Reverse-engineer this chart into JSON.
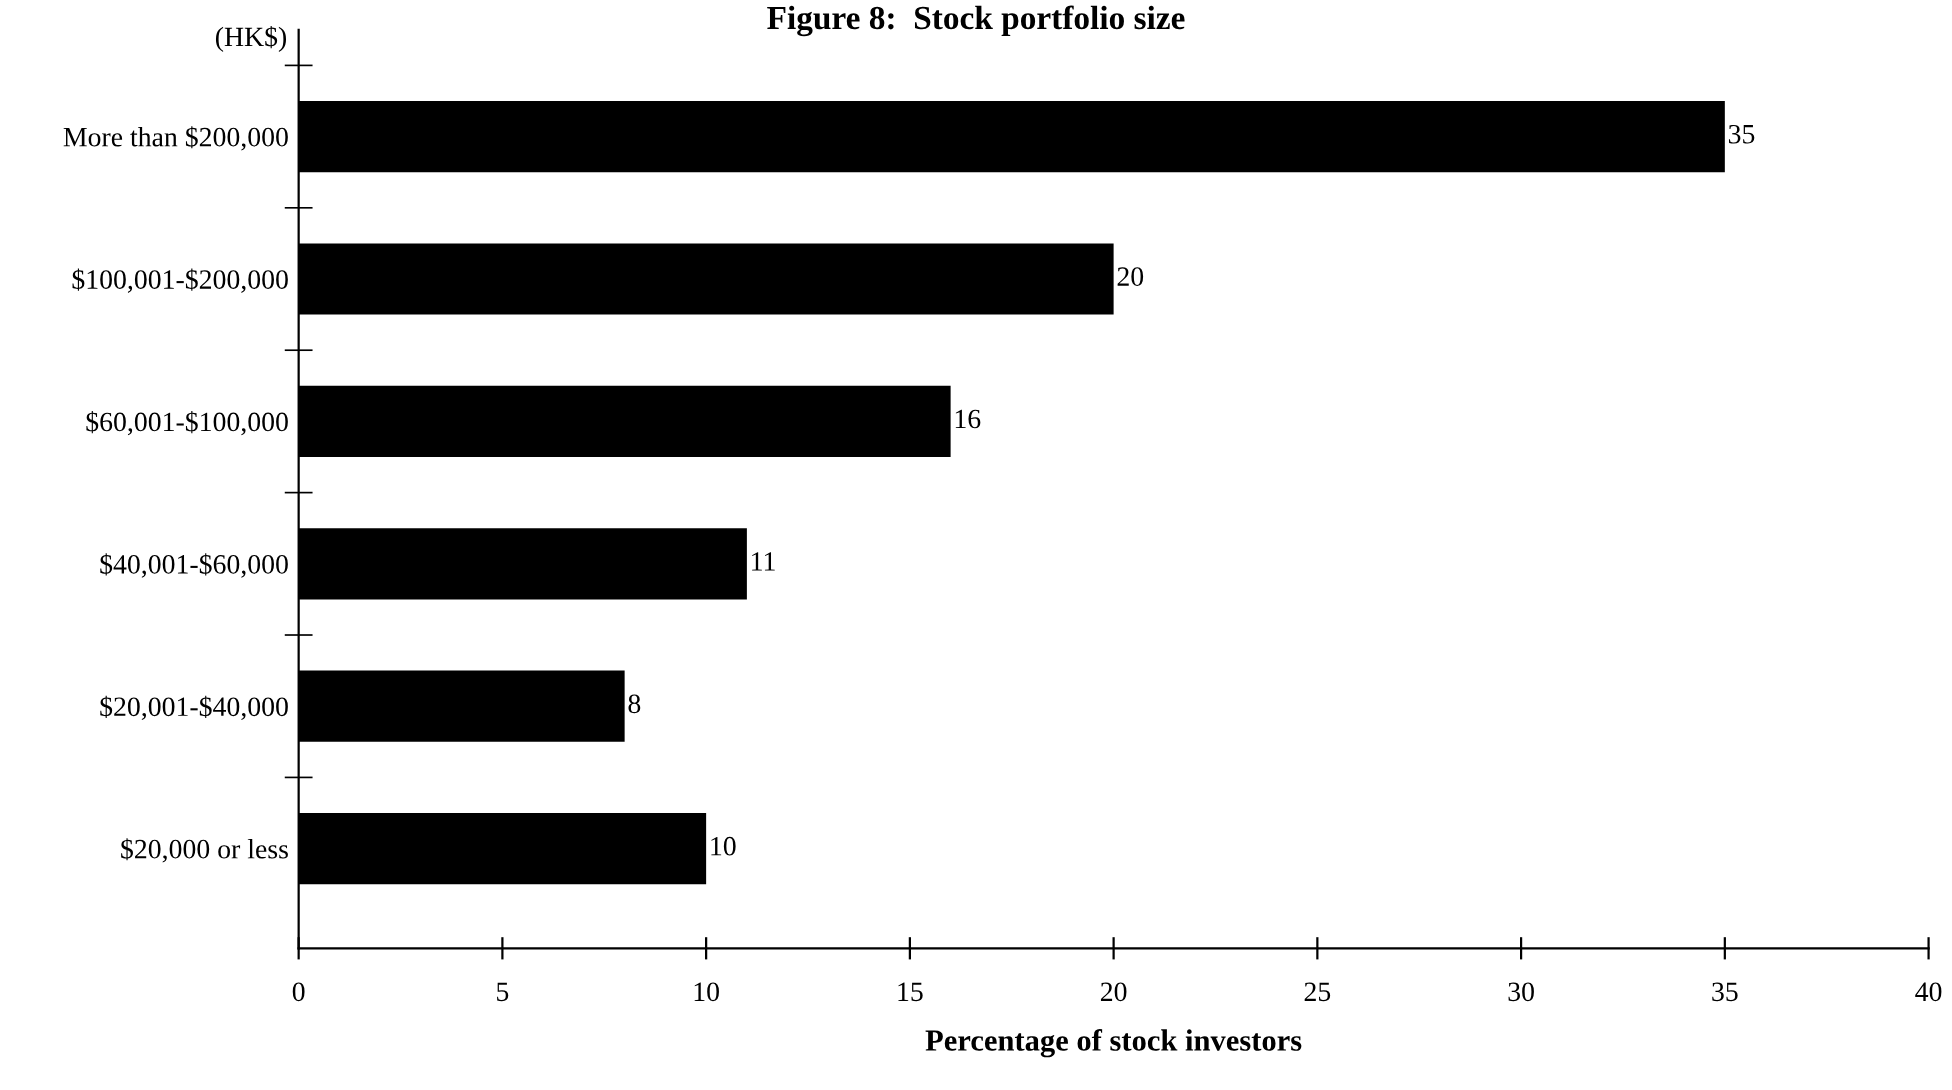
{
  "chart_data": {
    "type": "bar",
    "orientation": "horizontal",
    "title": "Figure 8:  Stock portfolio size",
    "ylabel": "(HK$)",
    "xlabel": "Percentage of stock investors",
    "categories": [
      "More than $200,000",
      "$100,001-$200,000",
      "$60,001-$100,000",
      "$40,001-$60,000",
      "$20,001-$40,000",
      "$20,000 or less"
    ],
    "values": [
      35,
      20,
      16,
      11,
      8,
      10
    ],
    "color": "#000000",
    "data_labels": true,
    "xlim": [
      0,
      40
    ],
    "xticks": [
      0,
      5,
      10,
      15,
      20,
      25,
      30,
      35,
      40
    ],
    "grid": false,
    "legend": false
  }
}
